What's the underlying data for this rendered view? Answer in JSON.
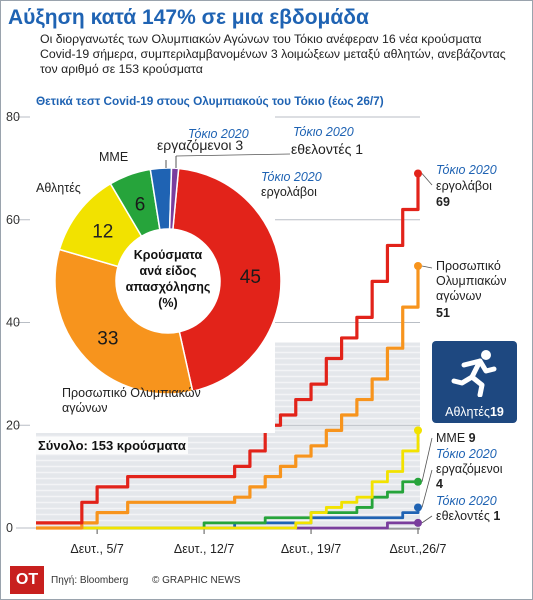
{
  "title": "Αύξηση κατά 147% σε μια εβδομάδα",
  "subtitle": "Οι διοργανωτές των Ολυμπιακών Αγώνων του Τόκιο ανέφεραν 16 νέα κρούσματα Covid-19 σήμερα, συμπεριλαμβανομένων 3 λοιμώξεων μεταξύ αθλητών, ανεβάζοντας τον αριθμό σε 153 κρούσματα",
  "chart_heading": "Θετικά τεστ Covid-19 στους Ολυμπιακούς του Τόκιο (έως 26/7)",
  "total_label": "Σύνολο: 153 κρούσματα",
  "athletes_logo": {
    "name": "Αθλητές",
    "number": "19",
    "icon": "runner-icon"
  },
  "footer": {
    "logo": "OT",
    "source": "Πηγή: Bloomberg",
    "credit": "© GRAPHIC NEWS"
  },
  "colors": {
    "contractors": "#e2231a",
    "staff": "#f7941d",
    "athletes": "#f2e200",
    "media": "#26a43b",
    "employees": "#1f63b3",
    "volunteers": "#7a3e9d",
    "title_blue": "#1f63b3",
    "logo_navy": "#1e4880"
  },
  "line_labels": {
    "contractors": {
      "prefix": "Τόκιο 2020",
      "name": "εργολάβοι",
      "value": "69"
    },
    "staff": {
      "name_line1": "Προσωπικό",
      "name_line2": "Ολυμπιακών",
      "name_line3": "αγώνων",
      "value": "51"
    },
    "media": {
      "name": "ΜΜΕ",
      "value": "9"
    },
    "employees": {
      "prefix": "Τόκιο 2020",
      "name": "εργαζόμενοι",
      "value": "4"
    },
    "volunteers": {
      "prefix": "Τόκιο 2020",
      "name": "εθελοντές",
      "value": "1"
    }
  },
  "donut": {
    "center_line1": "Κρούσματα",
    "center_line2": "ανά είδος",
    "center_line3": "απασχόλησης",
    "center_line4": "(%)",
    "labels": {
      "contractors_prefix": "Τόκιο 2020",
      "contractors_name": "εργολάβοι",
      "staff_name": "Προσωπικό Ολυμπιακών αγώνων",
      "athletes_name": "Αθλητές",
      "media_name": "ΜΜΕ",
      "employees_prefix": "Τόκιο 2020",
      "employees_name": "εργαζόμενοι",
      "employees_value": "3",
      "volunteers_prefix": "Τόκιο 2020",
      "volunteers_name": "εθελοντές",
      "volunteers_value": "1"
    },
    "slices": [
      {
        "key": "contractors",
        "value": 45
      },
      {
        "key": "staff",
        "value": 33
      },
      {
        "key": "athletes",
        "value": 12
      },
      {
        "key": "media",
        "value": 6
      },
      {
        "key": "employees",
        "value": 3
      },
      {
        "key": "volunteers",
        "value": 1
      }
    ]
  },
  "chart_data": [
    {
      "type": "line",
      "title": "Θετικά τεστ Covid-19 στους Ολυμπιακούς του Τόκιο (έως 26/7)",
      "x_tick_labels": [
        "Δευτ., 5/7",
        "Δευτ., 12/7",
        "Δευτ., 19/7",
        "Δευτ.,26/7"
      ],
      "y_ticks": [
        0,
        20,
        40,
        60,
        80
      ],
      "ylim": [
        0,
        80
      ],
      "x": [
        "1/7",
        "2/7",
        "3/7",
        "4/7",
        "5/7",
        "6/7",
        "7/7",
        "8/7",
        "9/7",
        "10/7",
        "11/7",
        "12/7",
        "13/7",
        "14/7",
        "15/7",
        "16/7",
        "17/7",
        "18/7",
        "19/7",
        "20/7",
        "21/7",
        "22/7",
        "23/7",
        "24/7",
        "25/7",
        "26/7"
      ],
      "grid": true,
      "series": [
        {
          "key": "contractors",
          "values": [
            1,
            1,
            1,
            5,
            8,
            8,
            10,
            10,
            10,
            10,
            10,
            10,
            10,
            12,
            15,
            20,
            22,
            25,
            28,
            33,
            37,
            41,
            48,
            55,
            62,
            69
          ]
        },
        {
          "key": "staff",
          "values": [
            0,
            0,
            0,
            1,
            3,
            3,
            5,
            5,
            5,
            5,
            5,
            5,
            5,
            6,
            8,
            10,
            12,
            14,
            16,
            19,
            22,
            25,
            29,
            35,
            43,
            51
          ]
        },
        {
          "key": "athletes",
          "values": [
            0,
            0,
            0,
            0,
            0,
            0,
            0,
            0,
            0,
            0,
            0,
            0,
            0,
            0,
            0,
            0,
            0,
            1,
            3,
            4,
            5,
            6,
            9,
            11,
            15,
            19
          ]
        },
        {
          "key": "media",
          "values": [
            0,
            0,
            0,
            0,
            0,
            0,
            0,
            0,
            0,
            0,
            0,
            1,
            1,
            1,
            1,
            2,
            2,
            2,
            3,
            3,
            3,
            4,
            6,
            7,
            9,
            9
          ]
        },
        {
          "key": "employees",
          "values": [
            0,
            0,
            0,
            0,
            0,
            0,
            0,
            0,
            0,
            0,
            0,
            0,
            0,
            1,
            1,
            1,
            1,
            1,
            2,
            2,
            2,
            2,
            2,
            2,
            3,
            4
          ]
        },
        {
          "key": "volunteers",
          "values": [
            0,
            0,
            0,
            0,
            0,
            0,
            0,
            0,
            0,
            0,
            0,
            0,
            0,
            0,
            0,
            0,
            0,
            0,
            0,
            0,
            0,
            0,
            0,
            1,
            1,
            1
          ]
        }
      ]
    },
    {
      "type": "pie",
      "title": "Κρούσματα ανά είδος απασχόλησης (%)",
      "categories": [
        "Τόκιο 2020 εργολάβοι",
        "Προσωπικό Ολυμπιακών αγώνων",
        "Αθλητές",
        "ΜΜΕ",
        "Τόκιο 2020 εργαζόμενοι",
        "Τόκιο 2020 εθελοντές"
      ],
      "values": [
        45,
        33,
        12,
        6,
        3,
        1
      ]
    }
  ]
}
